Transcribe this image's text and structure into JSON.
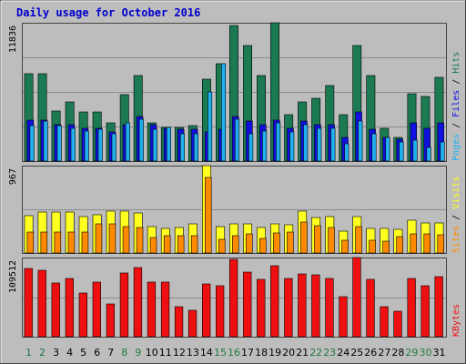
{
  "title": "Daily usage for October 2016",
  "colors": {
    "background": "#bdbdbd",
    "frame_dark": "#444444",
    "title": "#0000cc",
    "hits": "#1b7a52",
    "files": "#1010e0",
    "pages": "#20b0f0",
    "visits": "#ffff20",
    "sites": "#ff8a00",
    "kbytes": "#ee1010",
    "day_label": "#000000",
    "weekend_label": "#1e7a44"
  },
  "chart_data": [
    {
      "type": "bar",
      "panel": "top",
      "max_label": "11836",
      "ylim": [
        0,
        11836
      ],
      "legend": [
        {
          "text": "Pages",
          "color_key": "pages"
        },
        {
          "text": " / ",
          "color_key": "day_label"
        },
        {
          "text": "Files",
          "color_key": "files"
        },
        {
          "text": " / ",
          "color_key": "day_label"
        },
        {
          "text": "Hits",
          "color_key": "hits"
        }
      ],
      "categories": [
        "1",
        "2",
        "3",
        "4",
        "5",
        "6",
        "7",
        "8",
        "9",
        "10",
        "11",
        "12",
        "13",
        "14",
        "15",
        "16",
        "17",
        "18",
        "19",
        "20",
        "21",
        "22",
        "23",
        "24",
        "25",
        "26",
        "27",
        "28",
        "29",
        "30",
        "31"
      ],
      "series": [
        {
          "name": "Hits",
          "color_key": "hits",
          "values": [
            7500,
            7500,
            4300,
            5100,
            4200,
            4200,
            3300,
            5700,
            7300,
            3300,
            2900,
            2900,
            3000,
            7000,
            8300,
            11600,
            9900,
            7300,
            11800,
            4000,
            5100,
            5400,
            6500,
            4000,
            9900,
            7300,
            2800,
            2000,
            5800,
            5500,
            7200
          ]
        },
        {
          "name": "Files",
          "color_key": "files",
          "values": [
            3500,
            3500,
            3100,
            3100,
            2800,
            2800,
            2500,
            3100,
            3800,
            3100,
            2800,
            2700,
            2700,
            2500,
            2700,
            3800,
            3400,
            3100,
            3500,
            2800,
            3400,
            3100,
            3100,
            2000,
            4200,
            2700,
            2000,
            1900,
            3300,
            2800,
            3300
          ]
        },
        {
          "name": "Pages",
          "color_key": "pages",
          "values": [
            3000,
            3400,
            3000,
            2800,
            2600,
            2700,
            2300,
            3300,
            3600,
            2700,
            2900,
            2300,
            2300,
            5900,
            8300,
            3600,
            2300,
            2600,
            3300,
            2500,
            3100,
            2800,
            2800,
            1500,
            3400,
            2300,
            2000,
            1600,
            1800,
            1200,
            1600
          ]
        }
      ]
    },
    {
      "type": "bar",
      "panel": "middle",
      "max_label": "967",
      "ylim": [
        0,
        967
      ],
      "legend": [
        {
          "text": "Sites",
          "color_key": "sites"
        },
        {
          "text": " / ",
          "color_key": "day_label"
        },
        {
          "text": "Visits",
          "color_key": "visits"
        }
      ],
      "categories": [
        "1",
        "2",
        "3",
        "4",
        "5",
        "6",
        "7",
        "8",
        "9",
        "10",
        "11",
        "12",
        "13",
        "14",
        "15",
        "16",
        "17",
        "18",
        "19",
        "20",
        "21",
        "22",
        "23",
        "24",
        "25",
        "26",
        "27",
        "28",
        "29",
        "30",
        "31"
      ],
      "series": [
        {
          "name": "Visits",
          "color_key": "visits",
          "values": [
            410,
            450,
            450,
            450,
            400,
            420,
            460,
            460,
            440,
            290,
            270,
            280,
            320,
            967,
            290,
            320,
            320,
            280,
            320,
            310,
            460,
            390,
            400,
            240,
            400,
            270,
            270,
            260,
            360,
            330,
            330
          ]
        },
        {
          "name": "Sites",
          "color_key": "sites",
          "values": [
            230,
            230,
            230,
            230,
            230,
            320,
            320,
            290,
            280,
            170,
            190,
            190,
            190,
            840,
            150,
            190,
            210,
            160,
            220,
            230,
            340,
            300,
            280,
            140,
            290,
            140,
            130,
            180,
            210,
            210,
            200
          ]
        }
      ]
    },
    {
      "type": "bar",
      "panel": "bottom",
      "max_label": "109512",
      "ylim": [
        0,
        109512
      ],
      "legend": [
        {
          "text": "KBytes",
          "color_key": "kbytes"
        }
      ],
      "categories": [
        "1",
        "2",
        "3",
        "4",
        "5",
        "6",
        "7",
        "8",
        "9",
        "10",
        "11",
        "12",
        "13",
        "14",
        "15",
        "16",
        "17",
        "18",
        "19",
        "20",
        "21",
        "22",
        "23",
        "24",
        "25",
        "26",
        "27",
        "28",
        "29",
        "30",
        "31"
      ],
      "series": [
        {
          "name": "KBytes",
          "color_key": "kbytes",
          "values": [
            94000,
            92000,
            74000,
            81000,
            61000,
            76000,
            45000,
            88000,
            96000,
            75000,
            75000,
            42000,
            37000,
            73000,
            70000,
            107000,
            89000,
            79000,
            98000,
            80000,
            87000,
            86000,
            80000,
            55000,
            109512,
            79000,
            41000,
            35000,
            80000,
            71000,
            83000
          ]
        }
      ]
    }
  ],
  "x_axis": {
    "labels": [
      "1",
      "2",
      "3",
      "4",
      "5",
      "6",
      "7",
      "8",
      "9",
      "10",
      "11",
      "12",
      "13",
      "14",
      "15",
      "16",
      "17",
      "18",
      "19",
      "20",
      "21",
      "22",
      "23",
      "24",
      "25",
      "26",
      "27",
      "28",
      "29",
      "30",
      "31"
    ],
    "weekend_days": [
      1,
      2,
      8,
      9,
      15,
      16,
      22,
      23,
      29,
      30
    ]
  }
}
